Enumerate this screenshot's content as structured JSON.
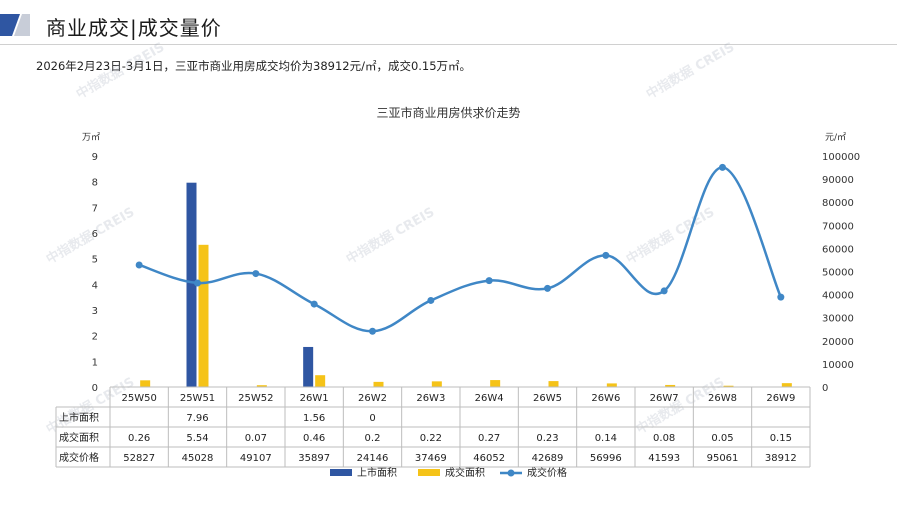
{
  "header": {
    "title": "商业成交|成交量价"
  },
  "summary": "2026年2月23日-3月1日，三亚市商业用房成交均价为38912元/㎡，成交0.15万㎡。",
  "watermark": "中指数据 CREIS",
  "colors": {
    "supply_bar": "#2f56a2",
    "deal_bar": "#f5c318",
    "price_line": "#3f87c6",
    "header_dark": "#2f56a2",
    "header_light": "#c8cdd8"
  },
  "chart_data": {
    "type": "bar",
    "title": "三亚市商业用房供求价走势",
    "ylabel_left": "万㎡",
    "ylabel_right": "元/㎡",
    "categories": [
      "25W50",
      "25W51",
      "25W52",
      "26W1",
      "26W2",
      "26W3",
      "26W4",
      "26W5",
      "26W6",
      "26W7",
      "26W8",
      "26W9"
    ],
    "ylim_left": [
      0,
      9
    ],
    "ylim_right": [
      0,
      100000
    ],
    "yticks_left": [
      "0",
      "1",
      "2",
      "3",
      "4",
      "5",
      "6",
      "7",
      "8",
      "9"
    ],
    "yticks_right": [
      "0",
      "10000",
      "20000",
      "30000",
      "40000",
      "50000",
      "60000",
      "70000",
      "80000",
      "90000",
      "100000"
    ],
    "grid": false,
    "legend_position": "bottom",
    "series": [
      {
        "name": "上市面积",
        "type": "bar",
        "axis": "left",
        "values": [
          null,
          7.96,
          null,
          1.56,
          0,
          null,
          null,
          null,
          null,
          null,
          null,
          null
        ],
        "labels": [
          "",
          "7.96",
          "",
          "1.56",
          "0",
          "",
          "",
          "",
          "",
          "",
          "",
          ""
        ]
      },
      {
        "name": "成交面积",
        "type": "bar",
        "axis": "left",
        "values": [
          0.26,
          5.54,
          0.07,
          0.46,
          0.2,
          0.22,
          0.27,
          0.23,
          0.14,
          0.08,
          0.05,
          0.15
        ],
        "labels": [
          "0.26",
          "5.54",
          "0.07",
          "0.46",
          "0.2",
          "0.22",
          "0.27",
          "0.23",
          "0.14",
          "0.08",
          "0.05",
          "0.15"
        ]
      },
      {
        "name": "成交价格",
        "type": "line",
        "axis": "right",
        "values": [
          52827,
          45028,
          49107,
          35897,
          24146,
          37469,
          46052,
          42689,
          56996,
          41593,
          95061,
          38912
        ],
        "labels": [
          "52827",
          "45028",
          "49107",
          "35897",
          "24146",
          "37469",
          "46052",
          "42689",
          "56996",
          "41593",
          "95061",
          "38912"
        ]
      }
    ]
  }
}
